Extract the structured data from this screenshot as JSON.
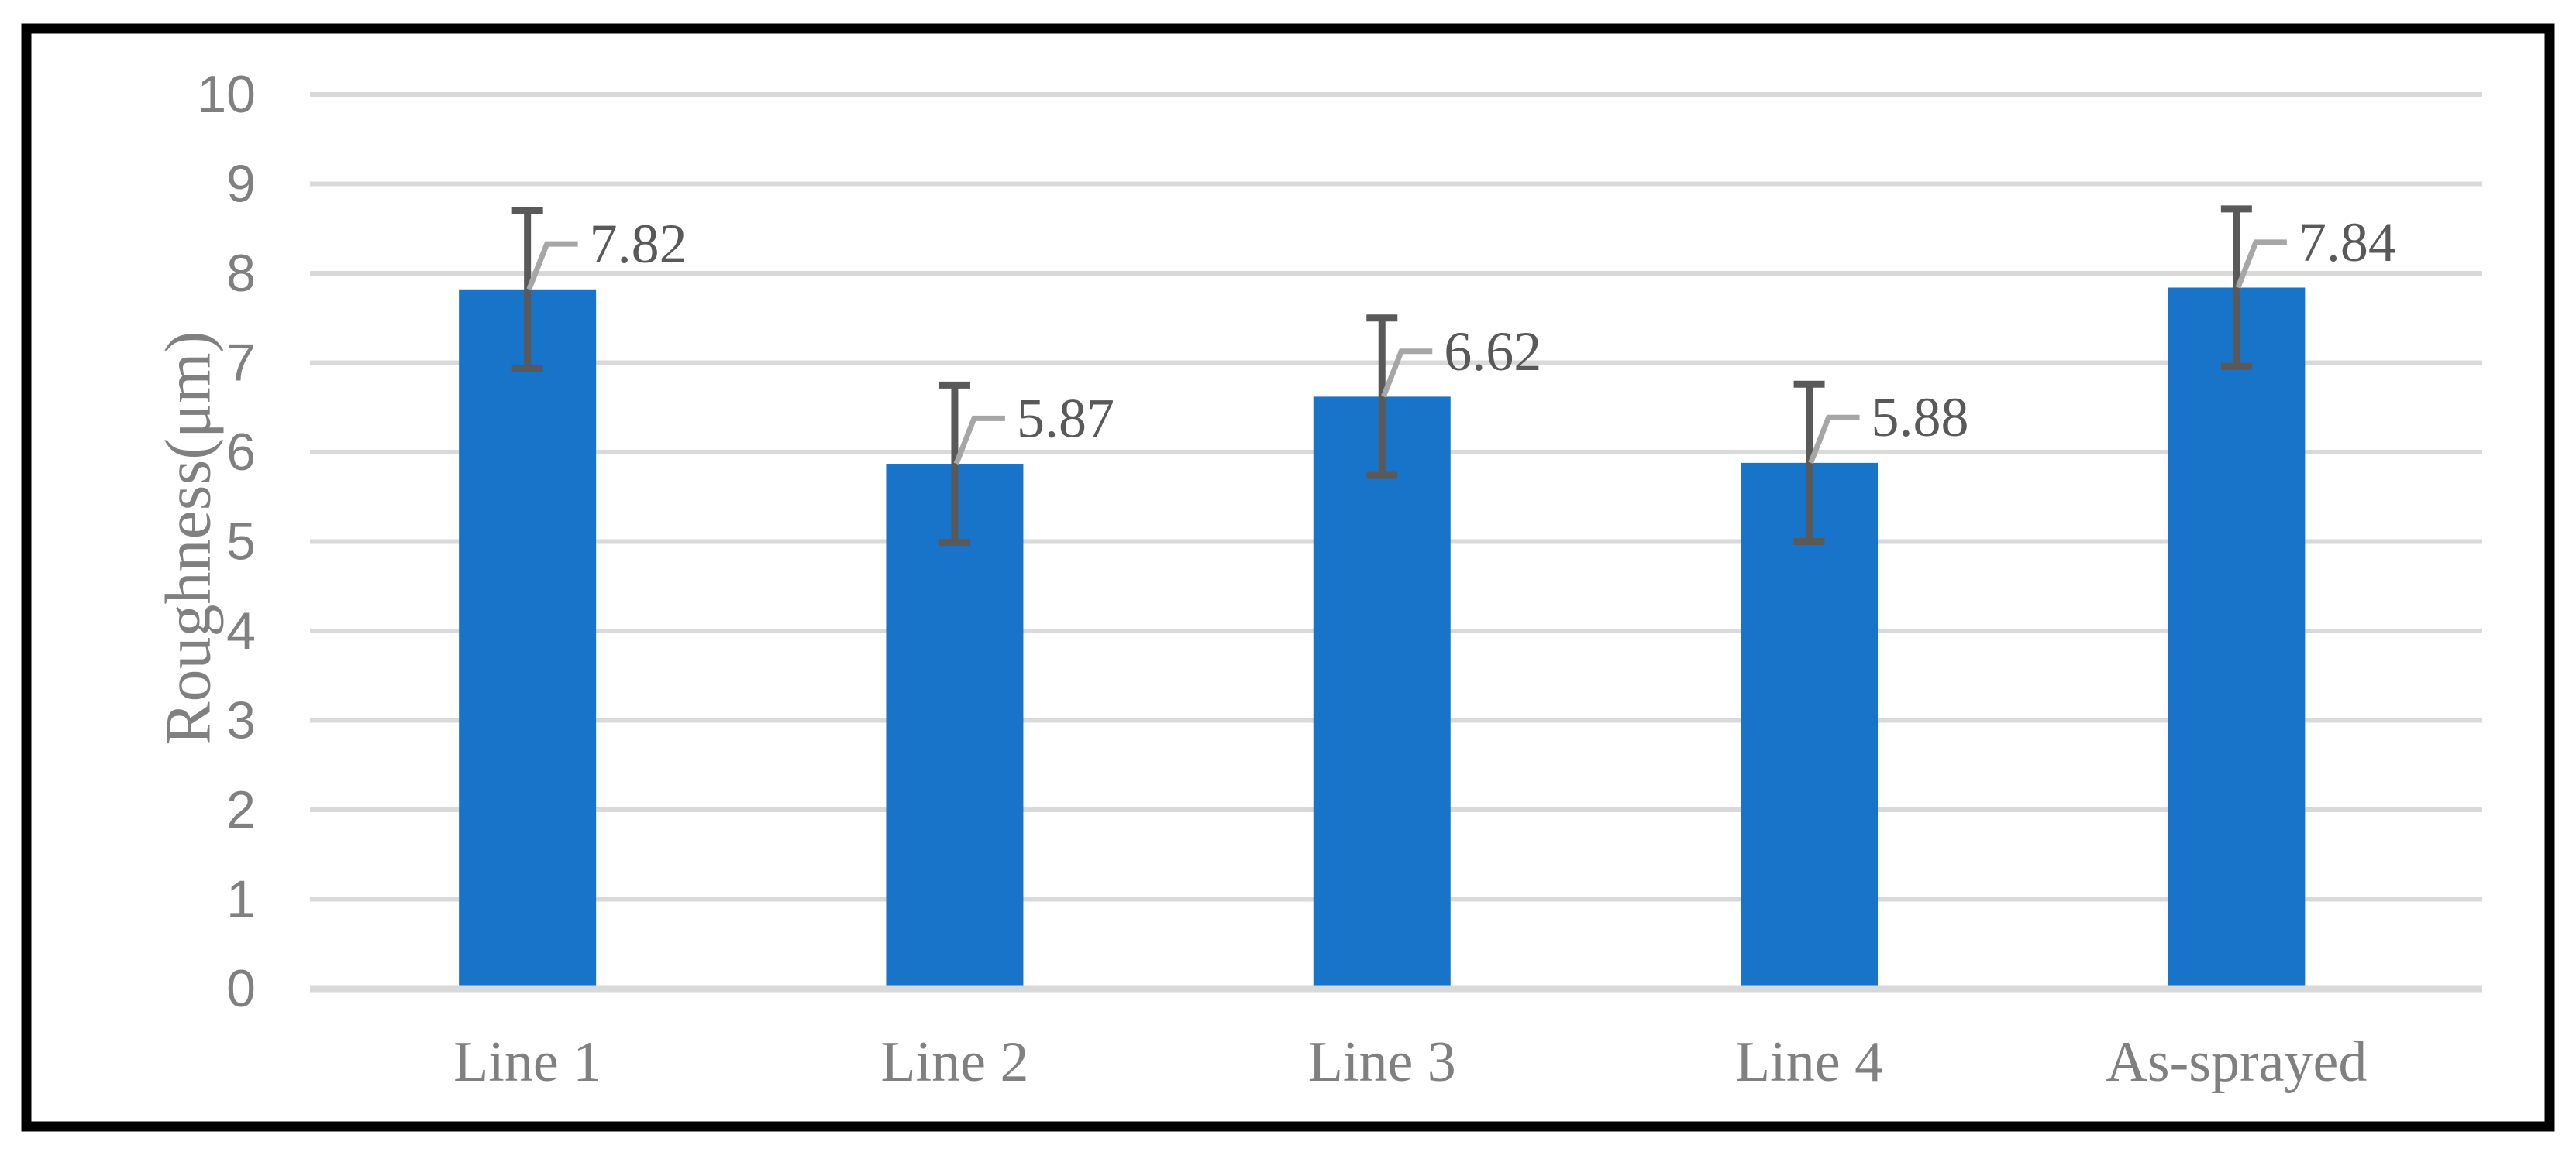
{
  "figure": {
    "background": "#FFFFFF",
    "border_color": "#000000"
  },
  "chart_data": {
    "type": "bar",
    "title": "",
    "xlabel": "",
    "ylabel": "Roughness(μm)",
    "categories": [
      "Line 1",
      "Line 2",
      "Line 3",
      "Line 4",
      "As-sprayed"
    ],
    "series": [
      {
        "name": "Roughness",
        "values": [
          7.82,
          5.87,
          6.62,
          5.88,
          7.84
        ]
      }
    ],
    "data_labels": [
      "7.82",
      "5.87",
      "6.62",
      "5.88",
      "7.84"
    ],
    "error_bars": {
      "type": "symmetric",
      "values": [
        0.88,
        0.88,
        0.88,
        0.88,
        0.88
      ]
    },
    "ylim": [
      0,
      10
    ],
    "yticks": [
      0,
      1,
      2,
      3,
      4,
      5,
      6,
      7,
      8,
      9,
      10
    ],
    "grid": "horizontal",
    "legend": "none",
    "colors": {
      "bar": "#1874C8",
      "gridline": "#D9D9D9",
      "axis_line": "#D9D9D9",
      "error_bar": "#595959",
      "leader_line": "#A6A6A6",
      "data_label_text": "#595959",
      "tick_label_text": "#808080",
      "category_label_text": "#808080",
      "axis_title_text": "#808080"
    }
  }
}
